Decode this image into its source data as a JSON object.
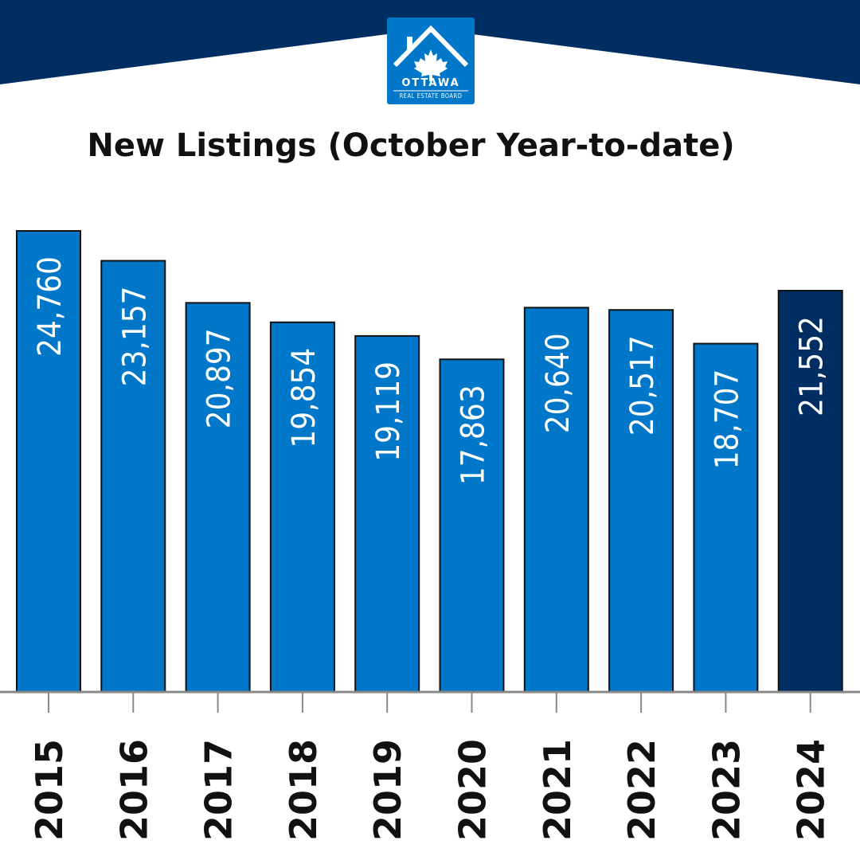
{
  "logo": {
    "line1": "OTTAWA",
    "line2": "REAL ESTATE BOARD",
    "color": "#0077c8"
  },
  "colors": {
    "header": "#002d62",
    "bar": "#0077c8",
    "bar_highlight": "#002d62",
    "bar_border": "#111111",
    "axis": "#888888"
  },
  "chart_data": {
    "type": "bar",
    "title": "New Listings (October Year-to-date)",
    "xlabel": "",
    "ylabel": "",
    "categories": [
      "2015",
      "2016",
      "2017",
      "2018",
      "2019",
      "2020",
      "2021",
      "2022",
      "2023",
      "2024"
    ],
    "values": [
      24760,
      23157,
      20897,
      19854,
      19119,
      17863,
      20640,
      20517,
      18707,
      21552
    ],
    "value_labels": [
      "24,760",
      "23,157",
      "20,897",
      "19,854",
      "19,119",
      "17,863",
      "20,640",
      "20,517",
      "18,707",
      "21,552"
    ],
    "ylim": [
      0,
      25000
    ],
    "highlight_category": "2024",
    "grid": false,
    "legend": "none"
  }
}
